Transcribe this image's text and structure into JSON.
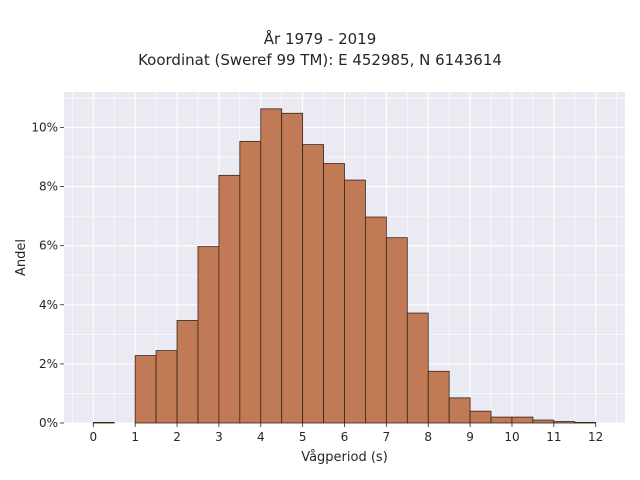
{
  "chart_data": {
    "type": "bar",
    "title": "År 1979 - 2019",
    "subtitle": "Koordinat (Sweref 99 TM): E 452985, N 6143614",
    "xlabel": "Vågperiod (s)",
    "ylabel": "Andel",
    "xlim": [
      -0.7,
      12.7
    ],
    "ylim": [
      0,
      11.2
    ],
    "x_ticks": [
      0,
      1,
      2,
      3,
      4,
      5,
      6,
      7,
      8,
      9,
      10,
      11,
      12
    ],
    "y_ticks": [
      0,
      2,
      4,
      6,
      8,
      10
    ],
    "y_tick_labels": [
      "0%",
      "2%",
      "4%",
      "6%",
      "8%",
      "10%"
    ],
    "bin_width": 0.5,
    "bin_starts": [
      0,
      0.5,
      1,
      1.5,
      2,
      2.5,
      3,
      3.5,
      4,
      4.5,
      5,
      5.5,
      6,
      6.5,
      7,
      7.5,
      8,
      8.5,
      9,
      9.5,
      10,
      10.5,
      11,
      11.5
    ],
    "values": [
      0.02,
      0.0,
      2.28,
      2.45,
      3.47,
      5.97,
      8.38,
      9.53,
      10.63,
      10.48,
      9.42,
      8.78,
      8.22,
      6.97,
      6.27,
      3.72,
      1.75,
      0.85,
      0.4,
      0.2,
      0.2,
      0.1,
      0.05,
      0.02
    ],
    "grid": true,
    "colors": {
      "bar_fill": "#c07a55",
      "bar_edge": "#3a2418",
      "plot_background": "#eaeaf2",
      "grid": "#ffffff"
    }
  }
}
